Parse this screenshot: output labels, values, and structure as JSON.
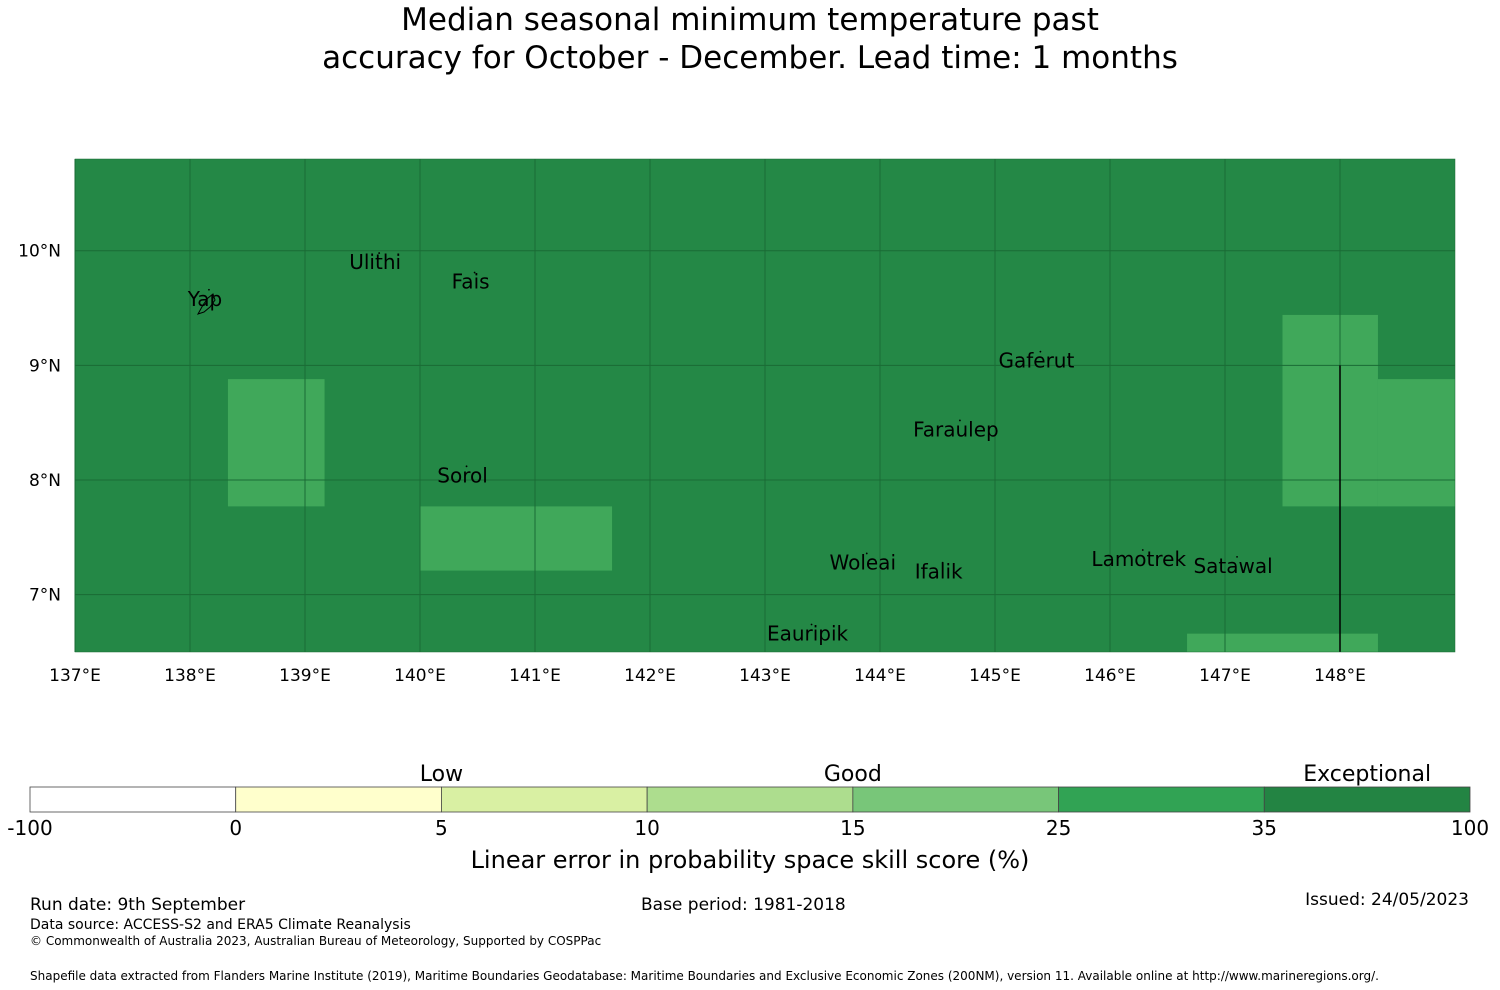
{
  "title": {
    "line1": "Median seasonal minimum temperature past",
    "line2": "accuracy for October - December. Lead time: 1 months"
  },
  "map": {
    "lon_range": [
      137,
      149
    ],
    "lat_range": [
      6.5,
      10.8
    ],
    "lon_ticks": [
      {
        "value": 137,
        "label": "137°E"
      },
      {
        "value": 138,
        "label": "138°E"
      },
      {
        "value": 139,
        "label": "139°E"
      },
      {
        "value": 140,
        "label": "140°E"
      },
      {
        "value": 141,
        "label": "141°E"
      },
      {
        "value": 142,
        "label": "142°E"
      },
      {
        "value": 143,
        "label": "143°E"
      },
      {
        "value": 144,
        "label": "144°E"
      },
      {
        "value": 145,
        "label": "145°E"
      },
      {
        "value": 146,
        "label": "146°E"
      },
      {
        "value": 147,
        "label": "147°E"
      },
      {
        "value": 148,
        "label": "148°E"
      }
    ],
    "lat_ticks": [
      {
        "value": 10,
        "label": "10°N"
      },
      {
        "value": 9,
        "label": "9°N"
      },
      {
        "value": 8,
        "label": "8°N"
      },
      {
        "value": 7,
        "label": "7°N"
      }
    ],
    "background_color": "#248846",
    "grid_color": "#1a6b35",
    "cells": [
      {
        "lon0": 138.33,
        "lon1": 139.17,
        "lat0": 7.77,
        "lat1": 8.88,
        "color": "#40a85a"
      },
      {
        "lon0": 140.0,
        "lon1": 141.67,
        "lat0": 7.21,
        "lat1": 7.77,
        "color": "#40a85a"
      },
      {
        "lon0": 147.5,
        "lon1": 148.33,
        "lat0": 7.77,
        "lat1": 9.44,
        "color": "#40a85a"
      },
      {
        "lon0": 148.33,
        "lon1": 149.0,
        "lat0": 7.77,
        "lat1": 8.88,
        "color": "#40a85a"
      },
      {
        "lon0": 146.67,
        "lon1": 148.33,
        "lat0": 6.5,
        "lat1": 6.66,
        "color": "#40a85a"
      }
    ],
    "boundary_line": {
      "lon": 148.0,
      "lat0": 6.5,
      "lat1": 9.0
    },
    "places": [
      {
        "name": "Yap",
        "lon": 138.13,
        "lat": 9.52
      },
      {
        "name": "Ulithi",
        "lon": 139.61,
        "lat": 9.84
      },
      {
        "name": "Fais",
        "lon": 140.44,
        "lat": 9.67
      },
      {
        "name": "Gaferut",
        "lon": 145.36,
        "lat": 8.98
      },
      {
        "name": "Faraulep",
        "lon": 144.66,
        "lat": 8.38
      },
      {
        "name": "Sorol",
        "lon": 140.37,
        "lat": 7.98
      },
      {
        "name": "Woleai",
        "lon": 143.85,
        "lat": 7.22
      },
      {
        "name": "Ifalik",
        "lon": 144.51,
        "lat": 7.14
      },
      {
        "name": "Lamotrek",
        "lon": 146.25,
        "lat": 7.25
      },
      {
        "name": "Satawal",
        "lon": 147.07,
        "lat": 7.19
      },
      {
        "name": "Eauripik",
        "lon": 143.37,
        "lat": 6.6
      }
    ]
  },
  "legend": {
    "categories": [
      {
        "label": "Low",
        "from_index": 1,
        "to_index": 3
      },
      {
        "label": "Good",
        "from_index": 3,
        "to_index": 5
      },
      {
        "label": "Exceptional",
        "from_index": 6,
        "to_index": 7
      }
    ],
    "bins": [
      {
        "color": "#ffffff"
      },
      {
        "color": "#ffffcc"
      },
      {
        "color": "#d9f0a3"
      },
      {
        "color": "#addd8e"
      },
      {
        "color": "#78c679"
      },
      {
        "color": "#31a354"
      },
      {
        "color": "#238443"
      }
    ],
    "tick_labels": [
      "-100",
      "0",
      "5",
      "10",
      "15",
      "25",
      "35",
      "100"
    ],
    "axis_label": "Linear error in probability space skill score (%)"
  },
  "footer": {
    "run_date": "Run date: 9th September",
    "base_period": "Base period: 1981-2018",
    "issued": "Issued: 24/05/2023",
    "data_source": "Data source: ACCESS-S2 and ERA5 Climate Reanalysis",
    "copyright": "© Commonwealth of Australia 2023, Australian Bureau of Meteorology, Supported by COSPPac",
    "shapefile": "Shapefile data extracted from Flanders Marine Institute (2019), Maritime Boundaries Geodatabase: Maritime Boundaries and Exclusive Economic Zones (200NM), version 11. Available online at http://www.marineregions.org/."
  }
}
